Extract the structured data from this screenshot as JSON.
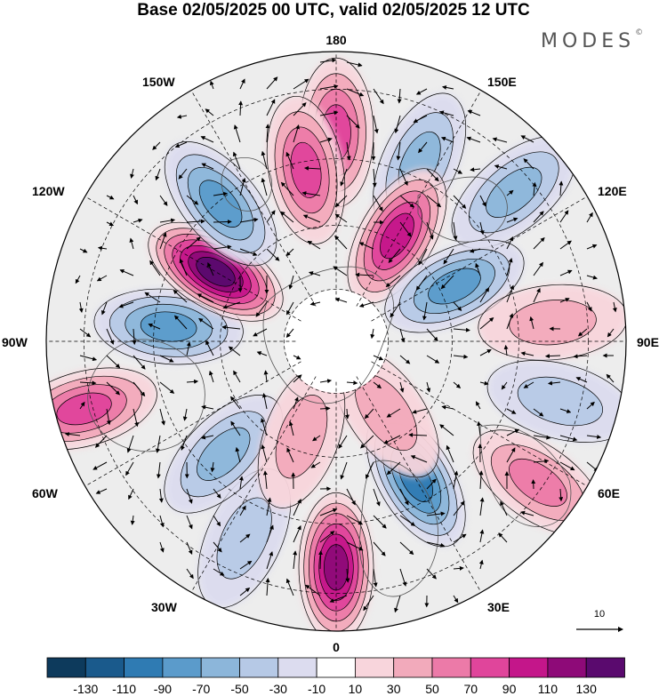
{
  "title": "Base 02/05/2025 00 UTC, valid 02/05/2025 12 UTC",
  "logo": "MODES",
  "logo_mark": "©",
  "longitude_labels": {
    "top": "180",
    "bottom": "0",
    "left": "90W",
    "right": "90E",
    "upper_left": "150W",
    "upper_right": "150E",
    "mid_upper_left": "120W",
    "mid_upper_right": "120E",
    "mid_lower_left": "60W",
    "mid_lower_right": "60E",
    "lower_left": "30W",
    "lower_right": "30E"
  },
  "vector_scale_label": "10",
  "colorbar": {
    "colors": [
      "#0d3a5c",
      "#1a5a8c",
      "#2f7bb3",
      "#5b9bcb",
      "#8cb6da",
      "#b6c9e6",
      "#dcdcef",
      "#ffffff",
      "#f8d5dc",
      "#f2aabb",
      "#ec7aa8",
      "#e0459b",
      "#c4168a",
      "#8e0a78",
      "#5a0a6e"
    ],
    "labels": [
      "-130",
      "-110",
      "-90",
      "-70",
      "-50",
      "-30",
      "-10",
      "10",
      "30",
      "50",
      "70",
      "90",
      "110",
      "130"
    ]
  },
  "anomalies": [
    {
      "lon": 180,
      "r": 0.72,
      "value": 75
    },
    {
      "lon": 155,
      "r": 0.68,
      "value": -55
    },
    {
      "lon": 130,
      "r": 0.8,
      "value": -45
    },
    {
      "lon": 150,
      "r": 0.42,
      "value": 85
    },
    {
      "lon": 115,
      "r": 0.45,
      "value": -70
    },
    {
      "lon": 95,
      "r": 0.75,
      "value": 25
    },
    {
      "lon": 75,
      "r": 0.8,
      "value": -30
    },
    {
      "lon": 55,
      "r": 0.85,
      "value": 45
    },
    {
      "lon": 30,
      "r": 0.55,
      "value": -85
    },
    {
      "lon": 0,
      "r": 0.78,
      "value": 100
    },
    {
      "lon": -25,
      "r": 0.75,
      "value": -35
    },
    {
      "lon": -45,
      "r": 0.55,
      "value": -50
    },
    {
      "lon": -75,
      "r": 0.9,
      "value": 60
    },
    {
      "lon": -95,
      "r": 0.58,
      "value": -70
    },
    {
      "lon": -120,
      "r": 0.48,
      "value": 120
    },
    {
      "lon": -140,
      "r": 0.62,
      "value": -60
    },
    {
      "lon": -170,
      "r": 0.6,
      "value": 70
    },
    {
      "lon": 35,
      "r": 0.3,
      "value": 20
    },
    {
      "lon": -20,
      "r": 0.35,
      "value": 30
    }
  ]
}
